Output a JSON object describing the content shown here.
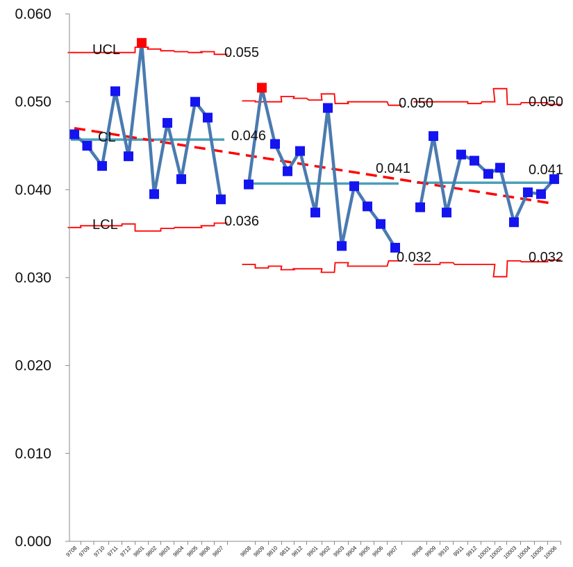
{
  "chart_data": {
    "type": "line",
    "title": "",
    "xlabel": "",
    "ylabel": "",
    "ylim": [
      0,
      0.06
    ],
    "y_ticks": [
      "0.000",
      "0.010",
      "0.020",
      "0.030",
      "0.040",
      "0.050",
      "0.060"
    ],
    "grid": false,
    "legend": "none",
    "categories": [
      "9708",
      "9709",
      "9710",
      "9711",
      "9712",
      "9801",
      "9802",
      "9803",
      "9804",
      "9805",
      "9806",
      "9807",
      "9808",
      "9809",
      "9810",
      "9811",
      "9812",
      "9901",
      "9902",
      "9903",
      "9904",
      "9905",
      "9906",
      "9907",
      "9908",
      "9909",
      "9910",
      "9911",
      "9912",
      "10001",
      "10002",
      "10003",
      "10004",
      "10005",
      "10006"
    ],
    "series": [
      {
        "kind": "data",
        "values": [
          0.0463,
          0.045,
          0.0427,
          0.0512,
          0.0438,
          0.0567,
          0.0395,
          0.0476,
          0.0412,
          0.05,
          0.0482,
          0.0389,
          0.0406,
          0.0516,
          0.0452,
          0.0421,
          0.0444,
          0.0374,
          0.0493,
          0.0336,
          0.0404,
          0.0381,
          0.0361,
          0.0334,
          0.038,
          0.0461,
          0.0374,
          0.044,
          0.0433,
          0.0418,
          0.0425,
          0.0363,
          0.0397,
          0.0395,
          0.0412
        ],
        "out_of_control_indices": [
          5,
          13
        ],
        "line_color": "#4a7bb0",
        "marker_color": "#1414f0",
        "out_of_control_color": "#ff0000"
      },
      {
        "kind": "ucl",
        "segments": [
          [
            0.0556,
            0.0556,
            0.0556,
            0.0556,
            0.0556,
            0.0562,
            0.056,
            0.0558,
            0.0557,
            0.0556,
            0.0557,
            0.0554
          ],
          [
            0.0501,
            0.05,
            0.05,
            0.0506,
            0.0504,
            0.0502,
            0.0509,
            0.0498,
            0.05,
            0.05,
            0.05,
            0.0496
          ],
          [
            0.05,
            0.05,
            0.05,
            0.05,
            0.0498,
            0.05,
            0.0515,
            0.0497,
            0.0499,
            0.0499,
            0.0497
          ]
        ],
        "color": "#ff0000"
      },
      {
        "kind": "lcl",
        "segments": [
          [
            0.0357,
            0.0359,
            0.0359,
            0.0359,
            0.0361,
            0.0353,
            0.0353,
            0.0356,
            0.0357,
            0.0357,
            0.0359,
            0.0362
          ],
          [
            0.0315,
            0.0311,
            0.0313,
            0.0309,
            0.031,
            0.031,
            0.0306,
            0.0317,
            0.0313,
            0.0313,
            0.0313,
            0.0319
          ],
          [
            0.0315,
            0.0315,
            0.0317,
            0.0315,
            0.0315,
            0.0315,
            0.0301,
            0.0319,
            0.0318,
            0.0318,
            0.032
          ]
        ],
        "color": "#ff0000"
      },
      {
        "kind": "cl",
        "segments": [
          {
            "from": 0,
            "to": 11,
            "value": 0.0457
          },
          {
            "from": 12,
            "to": 23,
            "value": 0.0407
          },
          {
            "from": 24,
            "to": 34,
            "value": 0.0408
          }
        ],
        "color": "#4aa0b8"
      },
      {
        "kind": "trend",
        "from_value": 0.047,
        "to_value": 0.0384,
        "style": "dashed",
        "color": "#ff0000"
      }
    ],
    "annotations": {
      "ucl_label": "UCL",
      "cl_label": "CL",
      "lcl_label": "LCL",
      "values": [
        "0.055",
        "0.046",
        "0.036",
        "0.050",
        "0.041",
        "0.032",
        "0.050",
        "0.041",
        "0.032"
      ]
    }
  }
}
